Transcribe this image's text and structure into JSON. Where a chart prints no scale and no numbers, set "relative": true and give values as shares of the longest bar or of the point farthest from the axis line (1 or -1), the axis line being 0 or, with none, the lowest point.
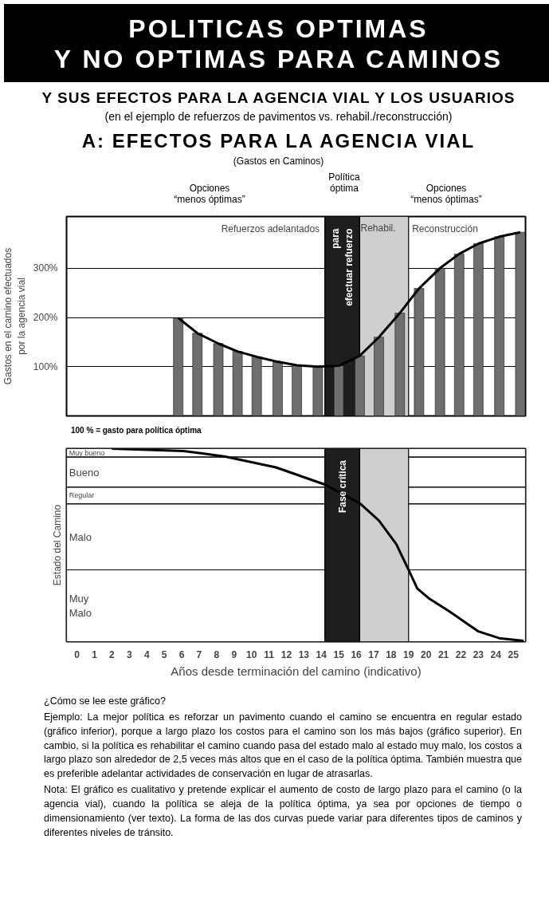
{
  "chart_data": [
    {
      "type": "bar",
      "title": "A: EFECTOS PARA LA AGENCIA VIAL",
      "subtitle": "(Gastos en Caminos)",
      "ylabel": "Gastos en el camino efectuados\npor la agencia vial",
      "annotations": [
        "POLITICAS OPTIMAS\nY NO OPTIMAS PARA CAMINOS",
        "Y SUS EFECTOS PARA LA AGENCIA VIAL Y LOS USUARIOS",
        "(en el ejemplo de refuerzos de pavimentos vs. rehabil./reconstrucción)",
        "Opciones\n“menos óptimas”",
        "Política\nóptima",
        "Opciones\n“menos óptimas”",
        "Refuerzos adelantados",
        "Reconstrucción",
        "100 % = gasto para política óptima"
      ],
      "series": [
        {
          "type": "bar",
          "color": "#6e6e6e",
          "x": [
            5.8,
            6.9,
            8.1,
            9.2,
            10.3,
            11.5,
            12.6,
            13.8,
            15.0,
            16.2,
            17.3,
            18.5,
            19.6,
            20.8,
            21.9,
            23.0,
            24.2,
            25.4
          ],
          "values": [
            199,
            168,
            147,
            131,
            120,
            110,
            103,
            100,
            102,
            122,
            160,
            209,
            259,
            300,
            329,
            350,
            364,
            373
          ]
        },
        {
          "type": "line",
          "color": "#000000",
          "x": [
            5.8,
            6.9,
            8.1,
            9.2,
            10.3,
            11.5,
            12.6,
            13.8,
            15.0,
            16.2,
            17.3,
            18.5,
            19.6,
            20.8,
            21.9,
            23.0,
            24.2,
            25.4
          ],
          "values": [
            199,
            168,
            147,
            131,
            120,
            110,
            103,
            100,
            102,
            122,
            160,
            209,
            259,
            300,
            329,
            350,
            364,
            373
          ]
        }
      ],
      "xlim": [
        -0.6,
        25.7
      ],
      "ylim": [
        0,
        405
      ],
      "yticks": [
        {
          "value": 100,
          "label": "100%"
        },
        {
          "value": 200,
          "label": "200%"
        },
        {
          "value": 300,
          "label": "300%"
        }
      ],
      "bands": [
        {
          "axis": "x",
          "from": 14.2,
          "to": 16.2,
          "label": "para\nefectuar refuerzo",
          "color": "#1e1e1e"
        },
        {
          "axis": "x",
          "from": 16.2,
          "to": 19.0,
          "label": "Rehabil.",
          "color": "#cfcfcf"
        }
      ],
      "grid": "y",
      "tick_labels": "y"
    },
    {
      "type": "line",
      "relative": true,
      "ylabel": "Estado del Camino",
      "xlabel": "Años desde terminación del camino (indicativo)",
      "annotations": [
        "¿Cómo se lee este gráfico?",
        "Ejemplo: La mejor política es reforzar un pavimento cuando el camino se encuentra en regular estado (gráfico inferior), porque a largo plazo los costos para el camino son los más bajos (gráfico superior). En cambio, si la política es rehabilitar el camino cuando pasa del estado malo al estado muy malo, los costos a largo plazo son alrededor de 2,5 veces más altos que en el caso de la política óptima. También muestra que es preferible adelantar actividades de conservación en lugar de atrasarlas.",
        "Nota: El gráfico es cualitativo y pretende explicar el aumento de costo de largo plazo para el camino (o la agencia vial), cuando la política se aleja de la política óptima, ya sea por opciones de tiempo o dimensionamiento (ver texto). La forma de las dos curvas puede variar para diferentes tipos de caminos y diferentes niveles de tránsito."
      ],
      "series": [
        {
          "color": "#000000",
          "x": [
            2.0,
            6.1,
            8.5,
            11.4,
            14.2,
            16.2,
            17.3,
            18.3,
            19.0,
            19.5,
            20.2,
            21.3,
            23.0,
            24.2,
            25.6
          ],
          "values": [
            1.0,
            0.988,
            0.959,
            0.903,
            0.814,
            0.717,
            0.628,
            0.505,
            0.372,
            0.275,
            0.222,
            0.159,
            0.053,
            0.018,
            0.004
          ]
        }
      ],
      "xlim": [
        -0.6,
        25.7
      ],
      "xticks": [
        0,
        1,
        2,
        3,
        4,
        5,
        6,
        7,
        8,
        9,
        10,
        11,
        12,
        13,
        14,
        15,
        16,
        17,
        18,
        19,
        20,
        21,
        22,
        23,
        24,
        25
      ],
      "bands": [
        {
          "axis": "x",
          "from": 14.2,
          "to": 16.2,
          "label": "Fase crítica",
          "color": "#1e1e1e"
        },
        {
          "axis": "x",
          "from": 16.2,
          "to": 19.0,
          "color": "#cfcfcf"
        },
        {
          "axis": "y",
          "from": 0.956,
          "to": 1.0,
          "label": "Muy bueno",
          "color": "#ffffff"
        },
        {
          "axis": "y",
          "from": 0.8,
          "to": 0.956,
          "label": "Bueno",
          "color": "#ffffff"
        },
        {
          "axis": "y",
          "from": 0.713,
          "to": 0.8,
          "label": "Regular",
          "color": "#ffffff"
        },
        {
          "axis": "y",
          "from": 0.372,
          "to": 0.713,
          "label": "Malo",
          "color": "#ffffff"
        },
        {
          "axis": "y",
          "from": 0.0,
          "to": 0.372,
          "label": "Muy\nMalo",
          "color": "#ffffff"
        }
      ],
      "line_style": "solid"
    }
  ]
}
